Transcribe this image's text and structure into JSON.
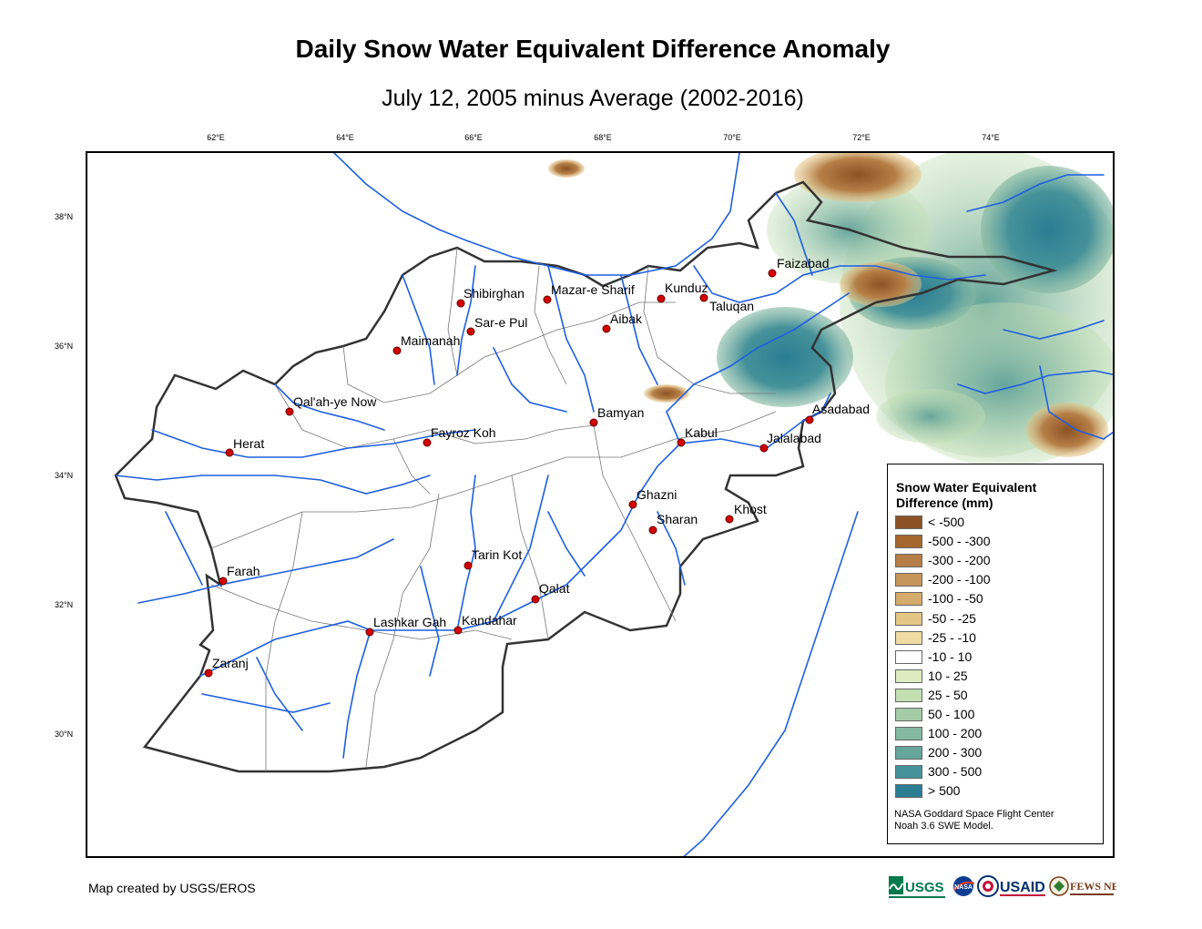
{
  "title": "Daily Snow Water Equivalent Difference Anomaly",
  "subtitle": "July 12, 2005 minus Average (2002-2016)",
  "axes": {
    "longitude_labels": [
      "62°E",
      "64°E",
      "66°E",
      "68°E",
      "70°E",
      "72°E",
      "74°E"
    ],
    "latitude_labels": [
      "38°N",
      "36°N",
      "34°N",
      "32°N",
      "30°N"
    ]
  },
  "cities": [
    {
      "name": "Faizabad"
    },
    {
      "name": "Shibirghan"
    },
    {
      "name": "Mazar-e Sharif"
    },
    {
      "name": "Kunduz"
    },
    {
      "name": "Taluqan"
    },
    {
      "name": "Sar-e Pul"
    },
    {
      "name": "Aibak"
    },
    {
      "name": "Maimanah"
    },
    {
      "name": "Qal'ah-ye Now"
    },
    {
      "name": "Bamyan"
    },
    {
      "name": "Asadabad"
    },
    {
      "name": "Fayroz Koh"
    },
    {
      "name": "Kabul"
    },
    {
      "name": "Jalalabad"
    },
    {
      "name": "Herat"
    },
    {
      "name": "Ghazni"
    },
    {
      "name": "Khost"
    },
    {
      "name": "Sharan"
    },
    {
      "name": "Tarin Kot"
    },
    {
      "name": "Farah"
    },
    {
      "name": "Qalat"
    },
    {
      "name": "Lashkar Gah"
    },
    {
      "name": "Kandahar"
    },
    {
      "name": "Zaranj"
    }
  ],
  "legend": {
    "title": "Snow Water Equivalent Difference (mm)",
    "items": [
      {
        "label": "< -500",
        "color": "#8c5225"
      },
      {
        "label": "-500 - -300",
        "color": "#a5672f"
      },
      {
        "label": "-300 - -200",
        "color": "#b67f47"
      },
      {
        "label": "-200 - -100",
        "color": "#c6955a"
      },
      {
        "label": "-100 - -50",
        "color": "#d5ab6c"
      },
      {
        "label": "-50 - -25",
        "color": "#e5c787"
      },
      {
        "label": "-25 - -10",
        "color": "#f0dca2"
      },
      {
        "label": "-10 - 10",
        "color": "#ffffff"
      },
      {
        "label": "10 - 25",
        "color": "#ddecc0"
      },
      {
        "label": "25 - 50",
        "color": "#c2dfb2"
      },
      {
        "label": "50 - 100",
        "color": "#a3cca6"
      },
      {
        "label": "100 - 200",
        "color": "#84b8a0"
      },
      {
        "label": "200 - 300",
        "color": "#66a59c"
      },
      {
        "label": "300 - 500",
        "color": "#46929a"
      },
      {
        "label": "> 500",
        "color": "#2a7d93"
      }
    ],
    "credit_line1": "NASA Goddard Space Flight Center",
    "credit_line2": "Noah 3.6 SWE Model."
  },
  "footer": "Map created by USGS/EROS",
  "logos": [
    "USGS",
    "NASA",
    "USAID",
    "FEWS NET"
  ],
  "colors": {
    "river": "#1e5fe0",
    "border": "#333333",
    "city_marker": "#d40000"
  }
}
